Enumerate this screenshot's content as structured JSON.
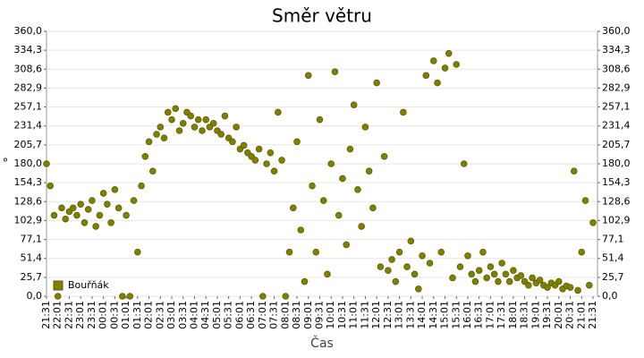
{
  "chart_data": {
    "type": "scatter",
    "title": "Směr větru",
    "x_label": "Čas",
    "y_label": "°",
    "categories": [
      "21:31",
      "22:01",
      "22:31",
      "23:01",
      "23:31",
      "00:01",
      "00:31",
      "01:01",
      "01:31",
      "02:01",
      "02:31",
      "03:01",
      "03:31",
      "04:01",
      "04:31",
      "05:01",
      "05:31",
      "06:01",
      "06:31",
      "07:01",
      "07:31",
      "08:01",
      "08:31",
      "09:01",
      "09:31",
      "10:01",
      "10:31",
      "11:01",
      "11:31",
      "12:01",
      "12:31",
      "13:01",
      "13:31",
      "14:01",
      "14:31",
      "15:01",
      "15:31",
      "16:01",
      "16:31",
      "17:01",
      "17:31",
      "18:01",
      "18:31",
      "19:01",
      "19:31",
      "20:01",
      "20:31",
      "21:01",
      "21:31"
    ],
    "ylim": [
      0,
      360
    ],
    "yticks": [
      {
        "value": 0,
        "label": "0,0"
      },
      {
        "value": 25.7,
        "label": "25,7"
      },
      {
        "value": 51.4,
        "label": "51,4"
      },
      {
        "value": 77.1,
        "label": "77,1"
      },
      {
        "value": 102.9,
        "label": "102,9"
      },
      {
        "value": 128.6,
        "label": "128,6"
      },
      {
        "value": 154.3,
        "label": "154,3"
      },
      {
        "value": 180,
        "label": "180,0"
      },
      {
        "value": 205.7,
        "label": "205,7"
      },
      {
        "value": 231.4,
        "label": "231,4"
      },
      {
        "value": 257.1,
        "label": "257,1"
      },
      {
        "value": 282.9,
        "label": "282,9"
      },
      {
        "value": 308.6,
        "label": "308,6"
      },
      {
        "value": 334.3,
        "label": "334,3"
      },
      {
        "value": 360,
        "label": "360,0"
      }
    ],
    "grid": true,
    "legend": "lower left",
    "series": [
      {
        "name": "Bouřňák",
        "color": "#808000",
        "x": [
          "21:31",
          "21:41",
          "21:51",
          "22:01",
          "22:11",
          "22:21",
          "22:31",
          "22:41",
          "22:51",
          "23:01",
          "23:11",
          "23:21",
          "23:31",
          "23:41",
          "23:51",
          "00:01",
          "00:11",
          "00:21",
          "00:31",
          "00:41",
          "00:51",
          "01:01",
          "01:11",
          "01:21",
          "01:31",
          "01:41",
          "01:51",
          "02:01",
          "02:11",
          "02:21",
          "02:31",
          "02:41",
          "02:51",
          "03:01",
          "03:11",
          "03:21",
          "03:31",
          "03:41",
          "03:51",
          "04:01",
          "04:11",
          "04:21",
          "04:31",
          "04:41",
          "04:51",
          "05:01",
          "05:11",
          "05:21",
          "05:31",
          "05:41",
          "05:51",
          "06:01",
          "06:11",
          "06:21",
          "06:31",
          "06:41",
          "06:51",
          "07:01",
          "07:11",
          "07:21",
          "07:31",
          "07:41",
          "07:51",
          "08:01",
          "08:11",
          "08:21",
          "08:31",
          "08:41",
          "08:51",
          "09:01",
          "09:11",
          "09:21",
          "09:31",
          "09:41",
          "09:51",
          "10:01",
          "10:11",
          "10:21",
          "10:31",
          "10:41",
          "10:51",
          "11:01",
          "11:11",
          "11:21",
          "11:31",
          "11:41",
          "11:51",
          "12:01",
          "12:11",
          "12:21",
          "12:31",
          "12:41",
          "12:51",
          "13:01",
          "13:11",
          "13:21",
          "13:31",
          "13:41",
          "13:51",
          "14:01",
          "14:11",
          "14:21",
          "14:31",
          "14:41",
          "14:51",
          "15:01",
          "15:11",
          "15:21",
          "15:31",
          "15:41",
          "15:51",
          "16:01",
          "16:11",
          "16:21",
          "16:31",
          "16:41",
          "16:51",
          "17:01",
          "17:11",
          "17:21",
          "17:31",
          "17:41",
          "17:51",
          "18:01",
          "18:11",
          "18:21",
          "18:31",
          "18:41",
          "18:51",
          "19:01",
          "19:11",
          "19:21",
          "19:31",
          "19:41",
          "19:51",
          "20:01",
          "20:11",
          "20:21",
          "20:31",
          "20:41",
          "20:51",
          "21:01",
          "21:11",
          "21:21",
          "21:31"
        ],
        "values": [
          180,
          150,
          110,
          0,
          120,
          105,
          115,
          120,
          110,
          125,
          100,
          118,
          130,
          95,
          110,
          140,
          125,
          100,
          145,
          120,
          0,
          110,
          0,
          130,
          60,
          150,
          190,
          210,
          170,
          220,
          230,
          215,
          250,
          240,
          255,
          225,
          235,
          250,
          245,
          230,
          240,
          225,
          240,
          230,
          235,
          225,
          220,
          245,
          215,
          210,
          230,
          200,
          205,
          195,
          190,
          185,
          200,
          0,
          180,
          195,
          170,
          250,
          185,
          0,
          60,
          120,
          210,
          90,
          20,
          300,
          150,
          60,
          240,
          130,
          30,
          180,
          305,
          110,
          160,
          70,
          200,
          260,
          145,
          95,
          230,
          170,
          120,
          290,
          40,
          190,
          35,
          50,
          20,
          60,
          250,
          40,
          75,
          30,
          10,
          55,
          300,
          45,
          320,
          290,
          60,
          310,
          330,
          25,
          315,
          40,
          180,
          55,
          30,
          20,
          35,
          60,
          25,
          40,
          30,
          20,
          45,
          30,
          20,
          35,
          25,
          28,
          20,
          15,
          25,
          18,
          22,
          15,
          12,
          18,
          15,
          20,
          10,
          14,
          12,
          170,
          8,
          60,
          130,
          15,
          100
        ]
      }
    ]
  }
}
